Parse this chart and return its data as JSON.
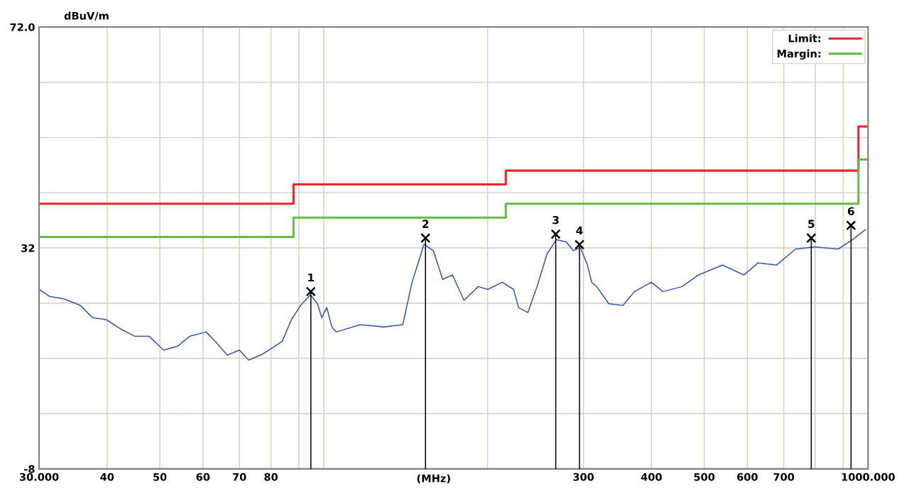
{
  "chart_data": {
    "type": "line",
    "ylabel": "dBuV/m",
    "xlabel": "(MHz)",
    "log": "x",
    "xlim": [
      30,
      1000
    ],
    "ylim": [
      -8,
      72
    ],
    "xticks": [
      {
        "value": 30,
        "label": "30.000"
      },
      40,
      50,
      60,
      70,
      80,
      {
        "value": 90,
        "label": null
      },
      {
        "value": 100,
        "label": null
      },
      {
        "value": 200,
        "label": null
      },
      300,
      400,
      500,
      600,
      700,
      {
        "value": 800,
        "label": null
      },
      {
        "value": 900,
        "label": null
      },
      {
        "value": 1000,
        "label": "1000.000"
      }
    ],
    "yticks": [
      {
        "value": 72,
        "label": "72.0"
      },
      {
        "value": 62,
        "label": null
      },
      {
        "value": 52,
        "label": null
      },
      {
        "value": 42,
        "label": null
      },
      32,
      {
        "value": 22,
        "label": null
      },
      {
        "value": 12,
        "label": null
      },
      {
        "value": 2,
        "label": null
      },
      -8
    ],
    "grid": true,
    "legend": "top right",
    "marker": "none",
    "line_style": "solid",
    "series": [
      {
        "color": "#3a57a7",
        "x": [
          30,
          31.4,
          33.3,
          35.7,
          37.6,
          39.9,
          42.4,
          45.0,
          47.8,
          50.8,
          53.9,
          56.7,
          60.8,
          63.2,
          66.5,
          70.0,
          72.8,
          77.3,
          80.4,
          83.9,
          87.2,
          90.7,
          94.5,
          97.4,
          99.2,
          101.3,
          103.5,
          105.4,
          116.7,
          128.9,
          139.7,
          145.3,
          152.9,
          159.0,
          165.4,
          172.4,
          181.0,
          192.2,
          200.3,
          212.8,
          223.2,
          228.0,
          237.1,
          247.3,
          257.1,
          267.4,
          278.9,
          287.4,
          296.1,
          305.1,
          310.6,
          317.3,
          334.0,
          354.7,
          372.3,
          399.9,
          419.7,
          455.0,
          487.7,
          540.3,
          591.3,
          627.9,
          678.7,
          736.1,
          798.3,
          881.3,
          936.0,
          988.2
        ],
        "values": [
          24.5,
          23.2,
          22.8,
          21.6,
          19.4,
          19.0,
          17.3,
          16.0,
          16.0,
          13.5,
          14.2,
          16.0,
          16.8,
          15.1,
          12.6,
          13.5,
          11.7,
          12.8,
          13.9,
          15.1,
          19.0,
          21.6,
          23.5,
          21.9,
          19.4,
          21.2,
          17.7,
          16.8,
          18.1,
          17.7,
          18.1,
          25.8,
          32.7,
          31.5,
          26.3,
          27.1,
          22.5,
          25.0,
          24.5,
          25.8,
          24.5,
          21.2,
          20.3,
          25.4,
          30.9,
          33.5,
          33.1,
          31.5,
          32.1,
          28.9,
          25.8,
          25.0,
          21.9,
          21.6,
          24.1,
          25.8,
          24.1,
          25.0,
          27.1,
          28.9,
          27.1,
          29.3,
          28.9,
          31.8,
          32.2,
          31.8,
          33.5,
          35.3
        ]
      },
      {
        "type": "step",
        "name": "Limit:",
        "color": "#e8262a",
        "x": [
          30,
          88,
          216,
          960,
          1000
        ],
        "values": [
          40,
          43.5,
          46,
          54,
          54
        ]
      },
      {
        "type": "step",
        "name": "Margin:",
        "color": "#66bb44",
        "x": [
          30,
          88,
          216,
          960,
          1000
        ],
        "values": [
          34,
          37.5,
          40,
          48,
          48
        ]
      },
      {
        "type": "lollipop",
        "color": "#000000",
        "marker": "cross",
        "x": [
          94.7,
          153.8,
          266.8,
          295.0,
          786.3,
          930.4
        ],
        "values": [
          24.1,
          33.8,
          34.5,
          32.6,
          33.8,
          36.1
        ]
      }
    ],
    "annotations": [
      {
        "text": "1",
        "x": 94.7,
        "y": 24.1
      },
      {
        "text": "2",
        "x": 153.8,
        "y": 33.8
      },
      {
        "text": "3",
        "x": 266.8,
        "y": 34.5
      },
      {
        "text": "4",
        "x": 295.0,
        "y": 32.6
      },
      {
        "text": "5",
        "x": 786.3,
        "y": 33.8
      },
      {
        "text": "6",
        "x": 930.4,
        "y": 36.1
      }
    ]
  }
}
